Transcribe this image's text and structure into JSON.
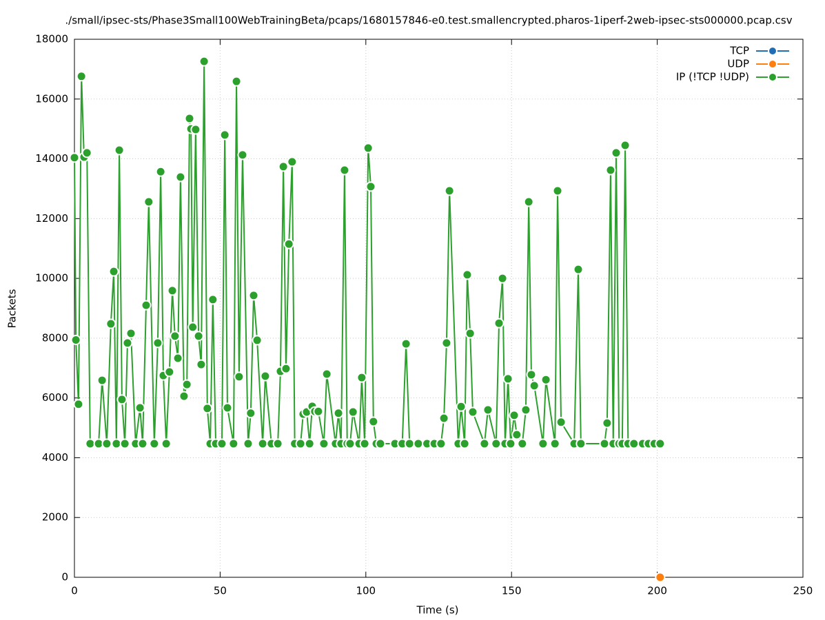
{
  "chart_data": {
    "type": "line",
    "title": "./small/ipsec-sts/Phase3Small100WebTrainingBeta/pcaps/1680157846-e0.test.smallencrypted.pharos-1iperf-2web-ipsec-sts000000.pcap.csv",
    "xlabel": "Time (s)",
    "ylabel": "Packets",
    "xlim": [
      0,
      250
    ],
    "xticks": [
      0,
      50,
      100,
      150,
      200,
      250
    ],
    "ylim": [
      0,
      18000
    ],
    "yticks": [
      0,
      2000,
      4000,
      6000,
      8000,
      10000,
      12000,
      14000,
      16000,
      18000
    ],
    "grid": true,
    "legend": "top-right",
    "series": [
      {
        "name": "TCP",
        "color": "#1f6db3",
        "x": [],
        "values": []
      },
      {
        "name": "UDP",
        "color": "#ff7f0e",
        "x": [
          201
        ],
        "values": [
          0
        ]
      },
      {
        "name": "IP (!TCP  !UDP)",
        "color": "#2ca02c",
        "x": [
          0,
          0.5,
          1.4,
          2.4,
          3.3,
          4.3,
          5.4,
          8.3,
          9.5,
          11.1,
          12.5,
          13.5,
          14.4,
          15.4,
          16.3,
          17.3,
          18.2,
          19.4,
          21,
          22.5,
          23.4,
          24.6,
          25.5,
          27.4,
          28.6,
          29.6,
          30.5,
          31.5,
          32.6,
          33.6,
          34.5,
          35.5,
          36.4,
          37.6,
          38.6,
          39.5,
          40,
          40.6,
          41.6,
          42.6,
          43.5,
          44.5,
          45.6,
          46.6,
          47.5,
          48.5,
          50.6,
          51.6,
          52.5,
          54.6,
          55.6,
          56.5,
          57.7,
          59.6,
          60.5,
          61.5,
          62.7,
          64.6,
          65.5,
          67.6,
          69.8,
          70.7,
          71.7,
          72.6,
          73.6,
          74.7,
          75.6,
          77.6,
          78.5,
          79.7,
          80.7,
          81.6,
          82.5,
          83.7,
          85.6,
          86.6,
          89.6,
          90.6,
          91.5,
          92.7,
          93.6,
          94.6,
          95.6,
          97.7,
          98.6,
          99.6,
          100.8,
          101.7,
          102.6,
          103.6,
          105,
          110,
          112.5,
          113.8,
          115,
          118,
          121,
          123.5,
          125.8,
          126.8,
          127.7,
          128.7,
          131.7,
          132.7,
          133.9,
          134.8,
          135.8,
          136.7,
          140.7,
          141.9,
          144.7,
          145.7,
          146.9,
          147.8,
          148.8,
          149.7,
          150.9,
          151.8,
          153.7,
          154.9,
          155.9,
          156.8,
          157.8,
          160.8,
          161.8,
          164.9,
          165.8,
          167,
          171.5,
          172.9,
          173.8,
          181.9,
          182.8,
          184,
          184.9,
          185.9,
          186.9,
          188,
          189,
          190,
          192,
          195,
          197,
          199,
          201
        ],
        "values": [
          14040,
          7940,
          5790,
          16760,
          14060,
          14200,
          4470,
          4470,
          6590,
          4470,
          8480,
          10230,
          4470,
          14290,
          5950,
          4470,
          7840,
          8160,
          4470,
          5670,
          4470,
          9100,
          12560,
          4470,
          7840,
          13570,
          6750,
          4470,
          6870,
          9590,
          8070,
          7330,
          13390,
          6060,
          6450,
          15350,
          15000,
          8370,
          14980,
          8070,
          7120,
          17260,
          5650,
          4470,
          9290,
          4470,
          4470,
          14800,
          5670,
          4470,
          16590,
          6710,
          14130,
          4470,
          5490,
          9430,
          7930,
          4470,
          6730,
          4470,
          4470,
          6890,
          13740,
          6980,
          11150,
          13900,
          4470,
          4470,
          5460,
          5530,
          4470,
          5720,
          5550,
          5550,
          4470,
          6800,
          4470,
          5490,
          4470,
          13620,
          4470,
          4470,
          5530,
          4470,
          6680,
          4470,
          14360,
          13070,
          5210,
          4470,
          4470,
          4470,
          4470,
          7810,
          4470,
          4470,
          4470,
          4470,
          4470,
          5320,
          7840,
          12930,
          4470,
          5710,
          4470,
          10120,
          8160,
          5530,
          4470,
          5600,
          4470,
          8500,
          10000,
          4470,
          6640,
          4470,
          5420,
          4770,
          4470,
          5600,
          12560,
          6780,
          6410,
          4470,
          6610,
          4470,
          12930,
          5190,
          4470,
          10300,
          4470,
          4470,
          5160,
          13620,
          4470,
          14200,
          4470,
          4470,
          14450,
          4470,
          4470,
          4470,
          4470,
          4470,
          4470
        ]
      }
    ]
  }
}
